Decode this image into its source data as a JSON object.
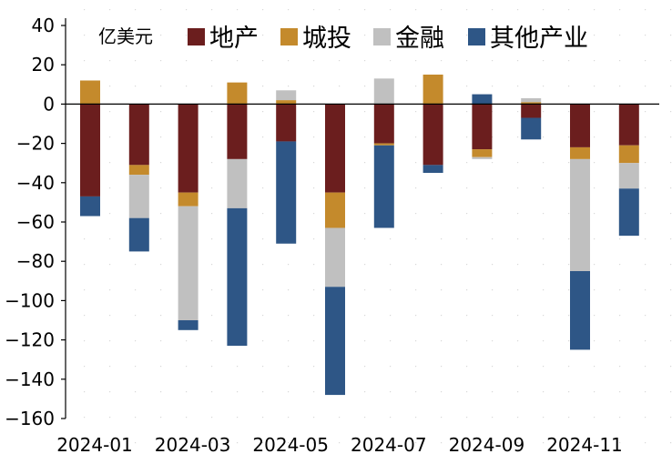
{
  "chart_data": {
    "type": "bar",
    "stacked": true,
    "unit_label": "亿美元",
    "categories": [
      "2024-01",
      "2024-02",
      "2024-03",
      "2024-04",
      "2024-05",
      "2024-06",
      "2024-07",
      "2024-08",
      "2024-09",
      "2024-10",
      "2024-11",
      "2024-12"
    ],
    "x_tick_labels": [
      "2024-01",
      "2024-03",
      "2024-05",
      "2024-07",
      "2024-09",
      "2024-11"
    ],
    "ylim": [
      -160,
      40
    ],
    "yticks": [
      40,
      20,
      0,
      -20,
      -40,
      -60,
      -80,
      -100,
      -120,
      -140,
      -160
    ],
    "legend_position": "top",
    "grid": false,
    "series": [
      {
        "name": "地产",
        "color": "#6B1E1E",
        "values": [
          -47,
          -31,
          -45,
          -28,
          -19,
          -45,
          -20,
          -31,
          -23,
          -7,
          -22,
          -21
        ]
      },
      {
        "name": "城投",
        "color": "#C48A2C",
        "values": [
          12,
          -5,
          -7,
          11,
          2,
          -18,
          -1,
          15,
          -4,
          1,
          -6,
          -9
        ]
      },
      {
        "name": "金融",
        "color": "#C0C0C0",
        "values": [
          0,
          -22,
          -58,
          -25,
          5,
          -30,
          13,
          0,
          -1,
          2,
          -57,
          -13
        ]
      },
      {
        "name": "其他产业",
        "color": "#2E5686",
        "values": [
          -10,
          -17,
          -5,
          -70,
          -52,
          -55,
          -42,
          -4,
          5,
          -11,
          -40,
          -24
        ]
      }
    ]
  }
}
